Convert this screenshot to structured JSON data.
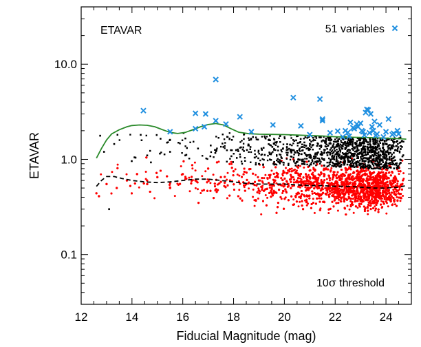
{
  "chart_data": {
    "type": "scatter",
    "title": "",
    "panel_label": "ETAVAR",
    "xlabel": "Fiducial Magnitude (mag)",
    "ylabel": "ETAVAR",
    "xlim": [
      12,
      25
    ],
    "ylim": [
      0.03,
      40
    ],
    "yscale": "log",
    "x_ticks": [
      12,
      14,
      16,
      18,
      20,
      22,
      24
    ],
    "x_tick_labels": [
      "12",
      "14",
      "16",
      "18",
      "20",
      "22",
      "24"
    ],
    "y_ticks": [
      0.1,
      1.0,
      10.0
    ],
    "y_tick_labels": [
      "0.1",
      "1.0",
      "10.0"
    ],
    "grid": false,
    "legend": {
      "position": "top-right",
      "label": "51 variables",
      "marker": "x",
      "color": "#1f8fe0"
    },
    "threshold_label_prefix": "10",
    "threshold_label_symbol": "σ",
    "threshold_label_suffix": " threshold",
    "colors": {
      "variables": "#1f8fe0",
      "threshold": "#2a8a2a",
      "above_median": "#000000",
      "below": "#ff0000",
      "median": "#000000"
    },
    "series": [
      {
        "name": "51 variables",
        "marker": "x",
        "points": [
          [
            14.45,
            3.25
          ],
          [
            15.5,
            1.95
          ],
          [
            16.5,
            3.05
          ],
          [
            16.5,
            2.1
          ],
          [
            16.9,
            3.0
          ],
          [
            16.85,
            2.2
          ],
          [
            17.3,
            6.9
          ],
          [
            17.3,
            2.55
          ],
          [
            17.7,
            2.35
          ],
          [
            18.25,
            2.8
          ],
          [
            18.7,
            1.95
          ],
          [
            19.55,
            2.3
          ],
          [
            20.35,
            4.45
          ],
          [
            20.65,
            2.25
          ],
          [
            21.0,
            1.82
          ],
          [
            21.4,
            4.3
          ],
          [
            21.5,
            2.55
          ],
          [
            21.5,
            2.65
          ],
          [
            21.8,
            1.9
          ],
          [
            22.1,
            1.98
          ],
          [
            22.3,
            1.72
          ],
          [
            22.4,
            2.0
          ],
          [
            22.5,
            1.92
          ],
          [
            22.55,
            1.75
          ],
          [
            22.6,
            2.45
          ],
          [
            22.7,
            2.15
          ],
          [
            22.75,
            2.1
          ],
          [
            22.85,
            2.35
          ],
          [
            22.9,
            2.2
          ],
          [
            23.0,
            2.4
          ],
          [
            23.05,
            2.0
          ],
          [
            23.1,
            1.95
          ],
          [
            23.15,
            1.8
          ],
          [
            23.2,
            3.1
          ],
          [
            23.25,
            3.35
          ],
          [
            23.3,
            3.3
          ],
          [
            23.35,
            1.9
          ],
          [
            23.4,
            3.0
          ],
          [
            23.45,
            2.2
          ],
          [
            23.5,
            2.0
          ],
          [
            23.55,
            2.5
          ],
          [
            23.65,
            1.85
          ],
          [
            23.75,
            2.3
          ],
          [
            23.9,
            1.72
          ],
          [
            24.0,
            1.95
          ],
          [
            24.1,
            2.65
          ],
          [
            24.25,
            1.82
          ],
          [
            24.3,
            1.88
          ],
          [
            24.45,
            2.0
          ],
          [
            24.5,
            1.85
          ],
          [
            23.6,
            1.78
          ]
        ]
      },
      {
        "name": "10σ threshold",
        "type": "line",
        "x": [
          12.6,
          12.8,
          13.0,
          13.2,
          13.5,
          13.8,
          14.0,
          14.3,
          14.6,
          14.9,
          15.2,
          15.5,
          15.8,
          16.1,
          16.4,
          16.7,
          17.0,
          17.3,
          17.6,
          17.9,
          18.2,
          18.6,
          19.0,
          19.5,
          20.0,
          20.5,
          21.0,
          21.5,
          22.0,
          22.5,
          23.0,
          23.5,
          24.0,
          24.5,
          24.8
        ],
        "values": [
          1.03,
          1.3,
          1.6,
          1.85,
          2.05,
          2.2,
          2.27,
          2.3,
          2.28,
          2.2,
          2.05,
          1.92,
          1.87,
          1.92,
          2.05,
          2.2,
          2.32,
          2.38,
          2.3,
          2.1,
          1.93,
          1.86,
          1.84,
          1.83,
          1.82,
          1.8,
          1.78,
          1.76,
          1.73,
          1.71,
          1.7,
          1.69,
          1.67,
          1.65,
          1.63
        ]
      },
      {
        "name": "median",
        "type": "line",
        "style": "dashed",
        "x": [
          12.6,
          12.8,
          13.0,
          13.3,
          13.6,
          14.0,
          14.5,
          15.0,
          15.5,
          16.0,
          16.5,
          17.0,
          17.5,
          18.0,
          18.5,
          19.0,
          19.5,
          20.0,
          20.5,
          21.0,
          21.5,
          22.0,
          22.5,
          23.0,
          23.5,
          24.0,
          24.5,
          24.8
        ],
        "values": [
          0.52,
          0.6,
          0.66,
          0.66,
          0.63,
          0.6,
          0.58,
          0.57,
          0.58,
          0.6,
          0.62,
          0.62,
          0.6,
          0.58,
          0.56,
          0.55,
          0.55,
          0.55,
          0.54,
          0.53,
          0.53,
          0.52,
          0.52,
          0.51,
          0.5,
          0.5,
          0.51,
          0.53
        ]
      },
      {
        "name": "above-median sources",
        "marker": "dot",
        "color": "#000000",
        "approximate": true,
        "points": [
          [
            12.9,
            1.2
          ],
          [
            13.1,
            0.3
          ],
          [
            13.3,
            1.45
          ],
          [
            14.1,
            1.05
          ],
          [
            14.6,
            1.1
          ],
          [
            15.1,
            1.15
          ],
          [
            15.5,
            1.2
          ],
          [
            16.1,
            1.1
          ],
          [
            16.6,
            1.3
          ],
          [
            17.1,
            1.4
          ],
          [
            17.6,
            1.35
          ],
          [
            18.1,
            1.25
          ],
          [
            18.6,
            1.4
          ],
          [
            19.1,
            1.3
          ],
          [
            19.6,
            1.45
          ],
          [
            20.1,
            1.35
          ],
          [
            20.6,
            1.5
          ],
          [
            21.1,
            1.4
          ],
          [
            21.6,
            1.5
          ],
          [
            22.1,
            1.45
          ],
          [
            22.6,
            1.55
          ],
          [
            23.1,
            1.5
          ],
          [
            23.6,
            1.45
          ],
          [
            24.1,
            1.4
          ]
        ]
      },
      {
        "name": "below-threshold sources",
        "marker": "dot",
        "color": "#ff0000",
        "approximate": true,
        "points": [
          [
            12.6,
            0.44
          ],
          [
            12.7,
            0.41
          ],
          [
            13.0,
            0.55
          ],
          [
            13.4,
            0.5
          ],
          [
            13.8,
            0.6
          ],
          [
            14.2,
            0.7
          ],
          [
            14.6,
            0.55
          ],
          [
            15.0,
            0.65
          ],
          [
            15.5,
            0.5
          ],
          [
            16.0,
            0.7
          ],
          [
            16.5,
            0.6
          ],
          [
            17.0,
            0.8
          ],
          [
            17.5,
            0.65
          ],
          [
            18.0,
            0.75
          ],
          [
            18.5,
            0.55
          ],
          [
            19.0,
            0.6
          ],
          [
            19.5,
            0.5
          ],
          [
            20.0,
            0.55
          ],
          [
            20.5,
            0.6
          ],
          [
            21.0,
            0.5
          ],
          [
            21.5,
            0.55
          ],
          [
            22.0,
            0.5
          ],
          [
            22.5,
            0.45
          ],
          [
            23.0,
            0.5
          ],
          [
            23.5,
            0.45
          ],
          [
            24.0,
            0.5
          ]
        ]
      }
    ]
  }
}
